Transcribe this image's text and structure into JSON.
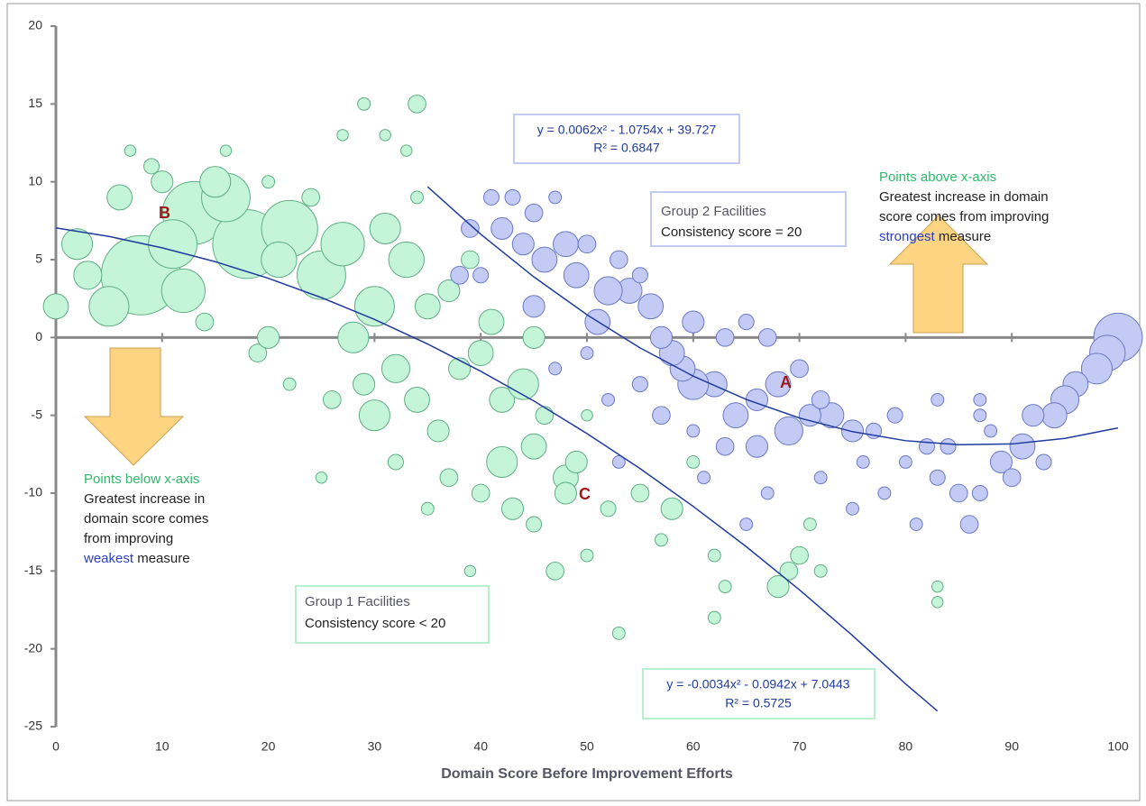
{
  "chart_data": {
    "type": "scatter",
    "xlabel": "Domain Score Before Improvement Efforts",
    "xlim": [
      0,
      100
    ],
    "xticks": [
      0,
      10,
      20,
      30,
      40,
      50,
      60,
      70,
      80,
      90,
      100
    ],
    "ylim": [
      -25,
      20
    ],
    "yticks": [
      -25,
      -20,
      -15,
      -10,
      -5,
      0,
      5,
      10,
      15,
      20
    ],
    "grid": false,
    "series": [
      {
        "name": "Group 1 Facilities",
        "description": "Consistency score < 20",
        "color": "#c5f5d9",
        "edgecolor": "#5fae84",
        "x": [
          8,
          13,
          18,
          22,
          5,
          12,
          16,
          2,
          0,
          3,
          6,
          10,
          9,
          25,
          27,
          30,
          31,
          33,
          35,
          28,
          32,
          34,
          36,
          30,
          38,
          40,
          42,
          44,
          45,
          48,
          42,
          40,
          45,
          47,
          52,
          55,
          58,
          50,
          53,
          62,
          69,
          70,
          68,
          62,
          39,
          25,
          29,
          34,
          27,
          31,
          33,
          7,
          16,
          20,
          22,
          19,
          37,
          43,
          48,
          49,
          60,
          57,
          63,
          72,
          71,
          83,
          83,
          50,
          46,
          45,
          41,
          37,
          39,
          34,
          24,
          14,
          20,
          26,
          29,
          32,
          35,
          15,
          21,
          11
        ],
        "values": [
          4,
          8,
          6,
          7,
          2,
          3,
          9,
          6,
          2,
          4,
          9,
          10,
          11,
          4,
          6,
          2,
          7,
          5,
          2,
          0,
          -2,
          -4,
          -6,
          -5,
          -2,
          -1,
          -4,
          -3,
          -7,
          -9,
          -8,
          -10,
          -12,
          -15,
          -11,
          -10,
          -11,
          -14,
          -19,
          -18,
          -15,
          -14,
          -16,
          -14,
          -15,
          -9,
          15,
          15,
          13,
          13,
          12,
          12,
          12,
          10,
          -3,
          -1,
          -9,
          -11,
          -10,
          -8,
          -8,
          -13,
          -16,
          -15,
          -12,
          -16,
          -17,
          -5,
          -5,
          0,
          1,
          3,
          5,
          9,
          9,
          1,
          0,
          -4,
          -3,
          -8,
          -11,
          10,
          5,
          6
        ],
        "sizes": [
          400,
          250,
          300,
          200,
          100,
          120,
          150,
          60,
          40,
          50,
          40,
          30,
          15,
          150,
          120,
          100,
          60,
          80,
          40,
          60,
          50,
          40,
          30,
          60,
          30,
          40,
          40,
          60,
          40,
          40,
          60,
          20,
          15,
          20,
          15,
          20,
          30,
          10,
          10,
          10,
          20,
          20,
          30,
          10,
          8,
          8,
          10,
          20,
          8,
          8,
          8,
          8,
          8,
          10,
          10,
          20,
          20,
          30,
          30,
          30,
          10,
          10,
          10,
          10,
          10,
          8,
          8,
          8,
          20,
          30,
          40,
          30,
          20,
          10,
          20,
          20,
          30,
          20,
          30,
          15,
          10,
          60,
          80,
          150
        ]
      },
      {
        "name": "Group 2 Facilities",
        "description": "Consistency score = 20",
        "color": "#c3cbf4",
        "edgecolor": "#6b78c8",
        "x": [
          100,
          99,
          98,
          96,
          95,
          94,
          92,
          91,
          89,
          90,
          86,
          85,
          87,
          83,
          80,
          78,
          75,
          77,
          75,
          73,
          71,
          69,
          68,
          66,
          64,
          62,
          60,
          59,
          58,
          57,
          56,
          54,
          52,
          51,
          49,
          48,
          46,
          45,
          44,
          42,
          41,
          43,
          45,
          47,
          39,
          38,
          40,
          50,
          53,
          55,
          60,
          63,
          65,
          67,
          70,
          72,
          66,
          63,
          61,
          65,
          81,
          84,
          82,
          79,
          87,
          93,
          88,
          57,
          55,
          50,
          47,
          52,
          53,
          60,
          72,
          76,
          67,
          87,
          83
        ],
        "values": [
          0,
          -1,
          -2,
          -3,
          -4,
          -5,
          -5,
          -7,
          -8,
          -9,
          -12,
          -10,
          -10,
          -9,
          -8,
          -10,
          -11,
          -6,
          -6,
          -5,
          -5,
          -6,
          -3,
          -4,
          -5,
          -3,
          -3,
          -2,
          -1,
          0,
          2,
          3,
          3,
          1,
          4,
          6,
          5,
          2,
          6,
          7,
          9,
          9,
          8,
          9,
          7,
          4,
          4,
          6,
          5,
          4,
          1,
          0,
          1,
          0,
          -2,
          -4,
          -7,
          -7,
          -9,
          -12,
          -12,
          -7,
          -7,
          -5,
          -5,
          -8,
          -6,
          -5,
          -3,
          -1,
          -2,
          -4,
          -8,
          -6,
          -9,
          -8,
          -10,
          -4,
          -4
        ],
        "sizes": [
          150,
          80,
          60,
          40,
          50,
          40,
          30,
          40,
          30,
          20,
          20,
          20,
          15,
          15,
          10,
          10,
          10,
          15,
          30,
          40,
          30,
          50,
          40,
          30,
          40,
          40,
          60,
          40,
          40,
          30,
          40,
          40,
          50,
          40,
          40,
          40,
          40,
          30,
          30,
          30,
          15,
          15,
          20,
          10,
          20,
          20,
          15,
          20,
          20,
          15,
          30,
          20,
          15,
          20,
          20,
          20,
          30,
          20,
          10,
          10,
          10,
          15,
          15,
          15,
          10,
          15,
          10,
          20,
          15,
          10,
          10,
          10,
          10,
          10,
          10,
          10,
          10,
          10,
          10
        ]
      }
    ],
    "trendlines": [
      {
        "color": "#1f3b9e",
        "equation": "y = -0.0034x² - 0.0942x + 7.0443",
        "r_squared": "R² = 0.5725",
        "x": [
          0,
          5,
          10,
          15,
          20,
          25,
          30,
          35,
          40,
          45,
          50,
          55,
          60,
          65,
          70,
          75,
          80,
          83
        ],
        "values": [
          7.04,
          6.49,
          5.76,
          4.87,
          3.8,
          2.56,
          1.16,
          -0.42,
          -2.17,
          -4.08,
          -6.17,
          -8.42,
          -10.85,
          -13.44,
          -16.21,
          -19.15,
          -22.25,
          -24
        ]
      },
      {
        "color": "#1f3b9e",
        "equation": "y = 0.0062x² - 1.0754x + 39.727",
        "r_squared": "R² = 0.6847",
        "x": [
          35,
          40,
          45,
          50,
          55,
          60,
          65,
          70,
          75,
          80,
          85,
          90,
          95,
          100
        ],
        "values": [
          9.68,
          6.63,
          3.89,
          1.46,
          -0.67,
          -2.48,
          -3.98,
          -5.17,
          -6.05,
          -6.63,
          -6.89,
          -6.84,
          -6.48,
          -5.81
        ]
      }
    ],
    "point_labels": [
      "B",
      "A",
      "C"
    ],
    "above_note": {
      "heading": "Points above x-axis",
      "lines": [
        "Greatest increase in domain",
        "score comes from improving"
      ],
      "highlight": "strongest",
      "tail": "measure"
    },
    "below_note": {
      "heading": "Points below x-axis",
      "lines": [
        "Greatest increase in",
        "domain score comes",
        "from improving"
      ],
      "highlight": "weakest",
      "tail": "measure"
    }
  }
}
